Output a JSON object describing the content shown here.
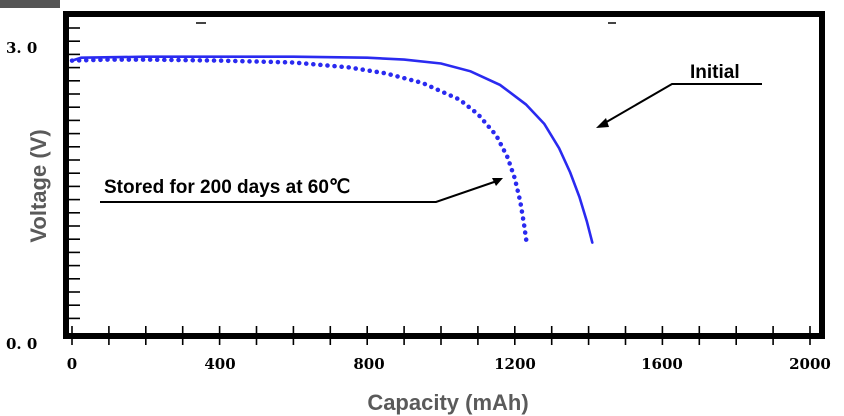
{
  "chart_data": {
    "type": "line",
    "title": "",
    "xlabel": "Capacity (mAh)",
    "ylabel": "Voltage (V)",
    "xlim": [
      0,
      2000
    ],
    "ylim": [
      0.0,
      3.0
    ],
    "x_ticks": [
      "0",
      "400",
      "800",
      "1200",
      "1600",
      "2000"
    ],
    "y_ticks": [
      "0. 0",
      "3. 0"
    ],
    "grid": false,
    "series": [
      {
        "name": "Initial",
        "style": "solid",
        "color": "#2a2af0",
        "points": [
          [
            0,
            2.85
          ],
          [
            25,
            2.88
          ],
          [
            200,
            2.89
          ],
          [
            600,
            2.89
          ],
          [
            800,
            2.88
          ],
          [
            900,
            2.86
          ],
          [
            1000,
            2.82
          ],
          [
            1080,
            2.74
          ],
          [
            1160,
            2.6
          ],
          [
            1230,
            2.4
          ],
          [
            1280,
            2.2
          ],
          [
            1320,
            1.95
          ],
          [
            1350,
            1.7
          ],
          [
            1375,
            1.45
          ],
          [
            1395,
            1.2
          ],
          [
            1410,
            0.98
          ]
        ]
      },
      {
        "name": "Stored for 200 days at 60℃",
        "style": "dotted",
        "color": "#2a2af0",
        "points": [
          [
            0,
            2.85
          ],
          [
            100,
            2.86
          ],
          [
            200,
            2.86
          ],
          [
            400,
            2.85
          ],
          [
            600,
            2.83
          ],
          [
            750,
            2.78
          ],
          [
            850,
            2.72
          ],
          [
            950,
            2.62
          ],
          [
            1050,
            2.45
          ],
          [
            1100,
            2.3
          ],
          [
            1150,
            2.08
          ],
          [
            1180,
            1.86
          ],
          [
            1200,
            1.64
          ],
          [
            1215,
            1.4
          ],
          [
            1225,
            1.17
          ],
          [
            1232,
            0.98
          ]
        ]
      }
    ],
    "annotations": [
      {
        "text": "Initial",
        "target_series": "Initial"
      },
      {
        "text": "Stored for 200 days at 60℃",
        "target_series": "Stored for 200 days at 60℃"
      }
    ]
  }
}
